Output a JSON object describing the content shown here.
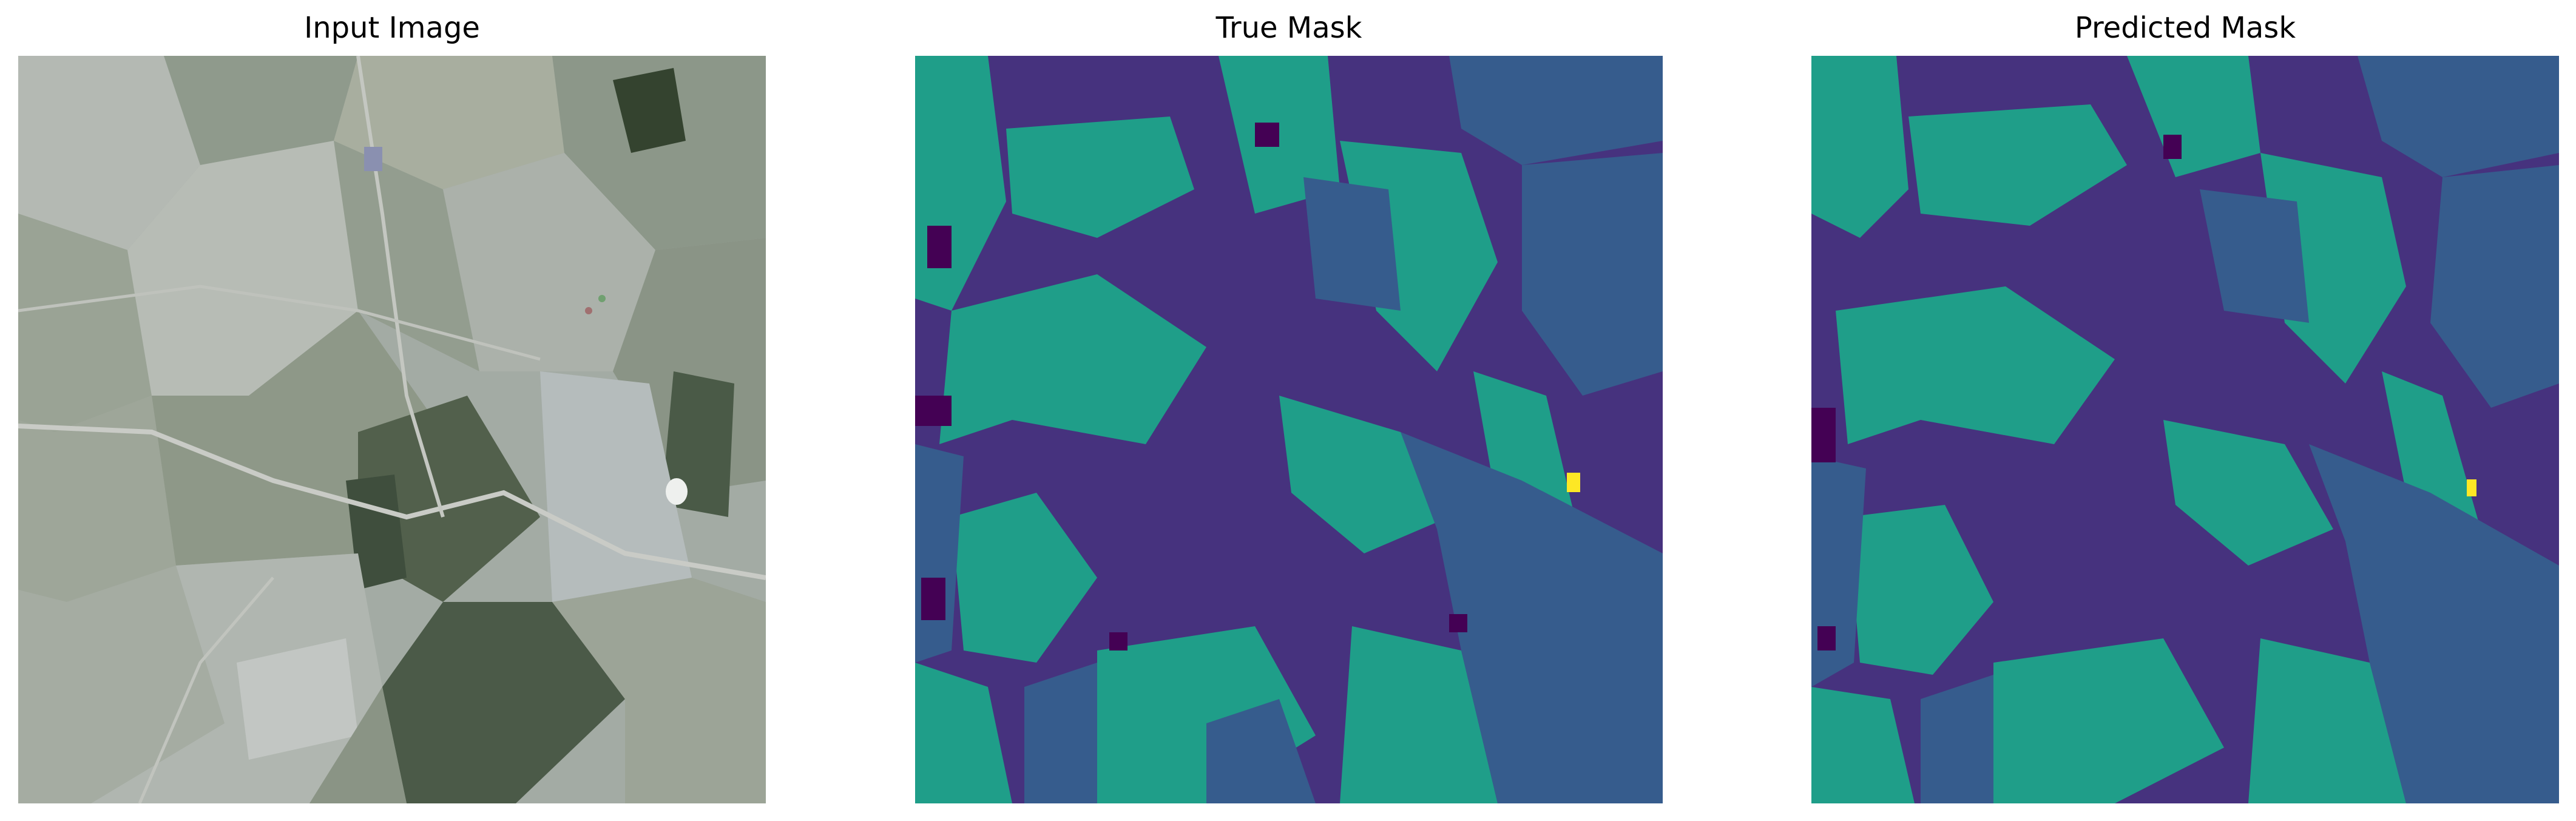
{
  "panels": {
    "input": {
      "title": "Input Image"
    },
    "true_mask": {
      "title": "True Mask"
    },
    "predicted": {
      "title": "Predicted Mask"
    }
  },
  "colors": {
    "viridis_0": "#440154",
    "viridis_1": "#46327e",
    "viridis_2": "#365c8d",
    "viridis_3": "#1f9e89",
    "viridis_4": "#fde725",
    "image_field_light": "#a9afaa",
    "image_field_dark": "#3f4e3d",
    "image_road": "#c9cbc6"
  }
}
